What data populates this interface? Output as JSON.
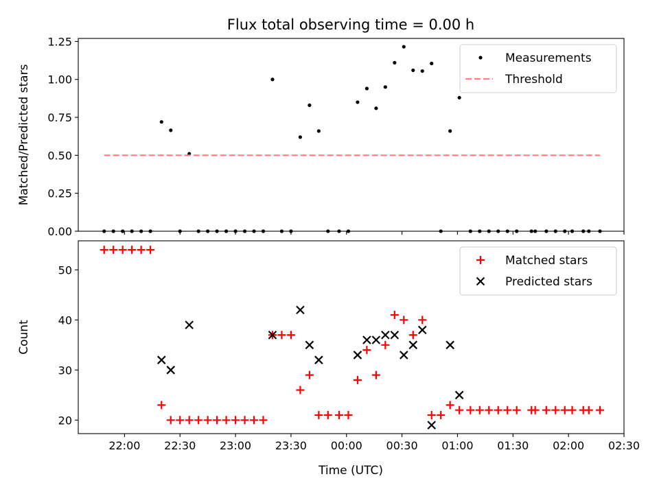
{
  "chart_data": [
    {
      "type": "scatter",
      "title": "Flux total observing time = 0.00 h",
      "xlabel": "",
      "ylabel": "Matched/Predicted stars",
      "xlim": [
        "21:35",
        "02:30"
      ],
      "ylim": [
        0,
        1.27
      ],
      "yticks": [
        "0.00",
        "0.25",
        "0.50",
        "0.75",
        "1.00",
        "1.25"
      ],
      "legend_position": "upper right",
      "series": [
        {
          "name": "Measurements",
          "color": "#000000",
          "marker": "dot",
          "points": [
            [
              "21:49",
              0
            ],
            [
              "21:54",
              0
            ],
            [
              "21:59",
              0
            ],
            [
              "22:04",
              0
            ],
            [
              "22:09",
              0
            ],
            [
              "22:14",
              0
            ],
            [
              "22:20",
              0.72
            ],
            [
              "22:25",
              0.665
            ],
            [
              "22:30",
              0
            ],
            [
              "22:35",
              0.51
            ],
            [
              "22:40",
              0
            ],
            [
              "22:45",
              0
            ],
            [
              "22:50",
              0
            ],
            [
              "22:55",
              0
            ],
            [
              "23:00",
              0
            ],
            [
              "23:05",
              0
            ],
            [
              "23:10",
              0
            ],
            [
              "23:15",
              0
            ],
            [
              "23:20",
              1.0
            ],
            [
              "23:25",
              0
            ],
            [
              "23:30",
              0
            ],
            [
              "23:35",
              0.62
            ],
            [
              "23:40",
              0.83
            ],
            [
              "23:45",
              0.66
            ],
            [
              "23:50",
              0
            ],
            [
              "23:56",
              0
            ],
            [
              "00:01",
              0
            ],
            [
              "00:06",
              0.85
            ],
            [
              "00:11",
              0.94
            ],
            [
              "00:16",
              0.81
            ],
            [
              "00:21",
              0.95
            ],
            [
              "00:26",
              1.11
            ],
            [
              "00:31",
              1.215
            ],
            [
              "00:36",
              1.06
            ],
            [
              "00:41",
              1.055
            ],
            [
              "00:46",
              1.105
            ],
            [
              "00:51",
              0
            ],
            [
              "00:56",
              0.66
            ],
            [
              "01:01",
              0.88
            ],
            [
              "01:07",
              0
            ],
            [
              "01:12",
              0
            ],
            [
              "01:17",
              0
            ],
            [
              "01:22",
              0
            ],
            [
              "01:27",
              0
            ],
            [
              "01:32",
              0
            ],
            [
              "01:40",
              0
            ],
            [
              "01:42",
              0
            ],
            [
              "01:48",
              0
            ],
            [
              "01:53",
              0
            ],
            [
              "01:58",
              0
            ],
            [
              "02:02",
              0
            ],
            [
              "02:08",
              0
            ],
            [
              "02:11",
              0
            ],
            [
              "02:17",
              0
            ]
          ]
        },
        {
          "name": "Threshold",
          "color": "#ff7f7f",
          "style": "dashed",
          "points": [
            [
              "21:49",
              0.5
            ],
            [
              "02:17",
              0.5
            ]
          ]
        }
      ]
    },
    {
      "type": "scatter",
      "title": "",
      "xlabel": "Time (UTC)",
      "ylabel": "Count",
      "xlim": [
        "21:35",
        "02:30"
      ],
      "ylim": [
        17.3,
        55.8
      ],
      "xticks": [
        "22:00",
        "22:30",
        "23:00",
        "23:30",
        "00:00",
        "00:30",
        "01:00",
        "01:30",
        "02:00",
        "02:30"
      ],
      "yticks": [
        "20",
        "30",
        "40",
        "50"
      ],
      "legend_position": "upper right",
      "series": [
        {
          "name": "Matched stars",
          "color": "#ff0000",
          "marker": "plus",
          "points": [
            [
              "21:49",
              54
            ],
            [
              "21:54",
              54
            ],
            [
              "21:59",
              54
            ],
            [
              "22:04",
              54
            ],
            [
              "22:09",
              54
            ],
            [
              "22:14",
              54
            ],
            [
              "22:20",
              23
            ],
            [
              "22:25",
              20
            ],
            [
              "22:30",
              20
            ],
            [
              "22:35",
              20
            ],
            [
              "22:40",
              20
            ],
            [
              "22:45",
              20
            ],
            [
              "22:50",
              20
            ],
            [
              "22:55",
              20
            ],
            [
              "23:00",
              20
            ],
            [
              "23:05",
              20
            ],
            [
              "23:10",
              20
            ],
            [
              "23:15",
              20
            ],
            [
              "23:20",
              37
            ],
            [
              "23:25",
              37
            ],
            [
              "23:30",
              37
            ],
            [
              "23:35",
              26
            ],
            [
              "23:40",
              29
            ],
            [
              "23:45",
              21
            ],
            [
              "23:50",
              21
            ],
            [
              "23:56",
              21
            ],
            [
              "00:01",
              21
            ],
            [
              "00:06",
              28
            ],
            [
              "00:11",
              34
            ],
            [
              "00:16",
              29
            ],
            [
              "00:21",
              35
            ],
            [
              "00:26",
              41
            ],
            [
              "00:31",
              40
            ],
            [
              "00:36",
              37
            ],
            [
              "00:41",
              40
            ],
            [
              "00:46",
              21
            ],
            [
              "00:51",
              21
            ],
            [
              "00:56",
              23
            ],
            [
              "01:01",
              22
            ],
            [
              "01:07",
              22
            ],
            [
              "01:12",
              22
            ],
            [
              "01:17",
              22
            ],
            [
              "01:22",
              22
            ],
            [
              "01:27",
              22
            ],
            [
              "01:32",
              22
            ],
            [
              "01:40",
              22
            ],
            [
              "01:42",
              22
            ],
            [
              "01:48",
              22
            ],
            [
              "01:53",
              22
            ],
            [
              "01:58",
              22
            ],
            [
              "02:02",
              22
            ],
            [
              "02:08",
              22
            ],
            [
              "02:11",
              22
            ],
            [
              "02:17",
              22
            ]
          ]
        },
        {
          "name": "Predicted stars",
          "color": "#000000",
          "marker": "x",
          "points": [
            [
              "22:20",
              32
            ],
            [
              "22:25",
              30
            ],
            [
              "22:35",
              39
            ],
            [
              "23:20",
              37
            ],
            [
              "23:35",
              42
            ],
            [
              "23:40",
              35
            ],
            [
              "23:45",
              32
            ],
            [
              "00:06",
              33
            ],
            [
              "00:11",
              36
            ],
            [
              "00:16",
              36
            ],
            [
              "00:21",
              37
            ],
            [
              "00:26",
              37
            ],
            [
              "00:31",
              33
            ],
            [
              "00:36",
              35
            ],
            [
              "00:41",
              38
            ],
            [
              "00:46",
              19
            ],
            [
              "00:56",
              35
            ],
            [
              "01:01",
              25
            ]
          ]
        }
      ]
    }
  ]
}
